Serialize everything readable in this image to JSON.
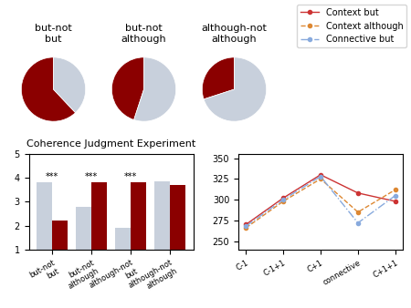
{
  "chart_data": [
    {
      "type": "pie",
      "title": "but-not\nbut",
      "values": [
        0.62,
        0.38
      ],
      "colors": [
        "#8b0000",
        "#c8d0dc"
      ]
    },
    {
      "type": "pie",
      "title": "but-not\nalthough",
      "values": [
        0.45,
        0.55
      ],
      "colors": [
        "#8b0000",
        "#c8d0dc"
      ]
    },
    {
      "type": "pie",
      "title": "although-not\nalthough",
      "values": [
        0.3,
        0.7
      ],
      "colors": [
        "#8b0000",
        "#c8d0dc"
      ]
    },
    {
      "type": "bar",
      "title": "Coherence Judgment Experiment",
      "categories": [
        "but-not\nbut",
        "but-not\nalthough",
        "although-not\nbut",
        "although-not\nalthough"
      ],
      "series": [
        {
          "color": "#c8d0dc",
          "values": [
            3.8,
            2.8,
            1.9,
            3.85
          ]
        },
        {
          "color": "#8b0000",
          "values": [
            2.2,
            3.8,
            3.8,
            3.7
          ]
        }
      ],
      "ylim": [
        1,
        5
      ],
      "yticks": [
        1,
        2,
        3,
        4,
        5
      ],
      "annotations": [
        {
          "text": "***",
          "category": "but-not\nbut"
        },
        {
          "text": "***",
          "category": "but-not\nalthough"
        },
        {
          "text": "***",
          "category": "although-not\nbut"
        }
      ]
    },
    {
      "type": "line",
      "categories": [
        "C-1",
        "C-1+1",
        "C+1",
        "connective",
        "C+1+1"
      ],
      "series": [
        {
          "name": "Context but",
          "color": "#cc3333",
          "line_style": "solid",
          "marker": "o",
          "values": [
            270,
            302,
            330,
            308,
            298
          ]
        },
        {
          "name": "Context although",
          "color": "#dd8833",
          "line_style": "dashed",
          "marker": "o",
          "values": [
            266,
            298,
            325,
            285,
            312
          ]
        },
        {
          "name": "Connective but",
          "color": "#88aadd",
          "line_style": "dashdot",
          "marker": "o",
          "values": [
            268,
            300,
            328,
            272,
            305
          ]
        }
      ],
      "ylim": [
        240,
        355
      ],
      "yticks": [
        250,
        275,
        300,
        325,
        350
      ],
      "legend": "upper right"
    }
  ]
}
